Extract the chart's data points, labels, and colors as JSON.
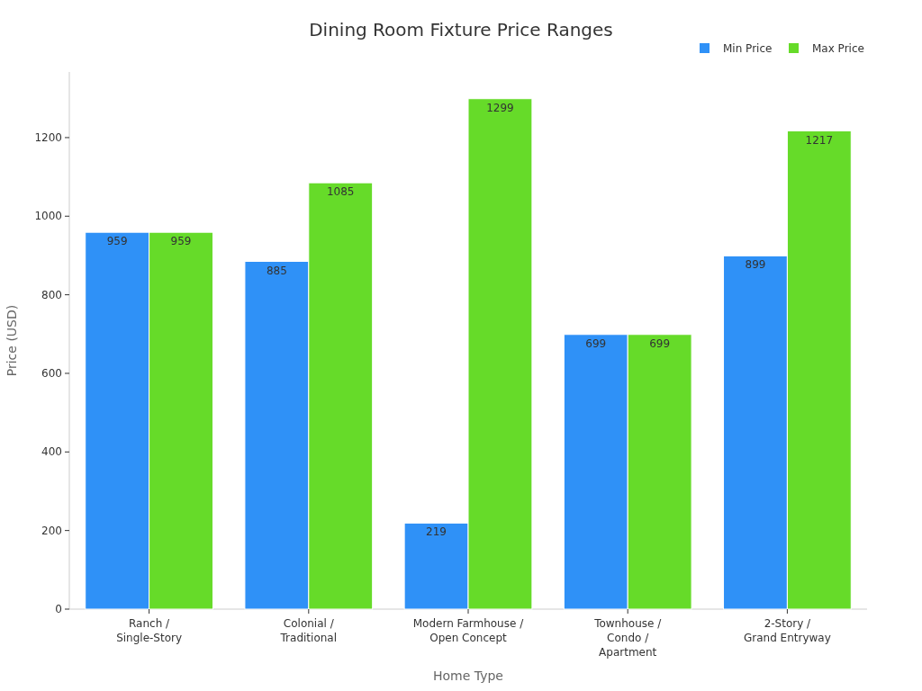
{
  "chart_data": {
    "type": "bar",
    "title": "Dining Room Fixture Price Ranges",
    "xlabel": "Home Type",
    "ylabel": "Price (USD)",
    "categories": [
      "Ranch /\nSingle-Story",
      "Colonial /\nTraditional",
      "Modern Farmhouse /\nOpen Concept",
      "Townhouse /\nCondo /\nApartment",
      "2-Story /\nGrand Entryway"
    ],
    "series": [
      {
        "name": "Min Price",
        "color": "#2f91f7",
        "values": [
          959,
          885,
          219,
          699,
          899
        ]
      },
      {
        "name": "Max Price",
        "color": "#66db29",
        "values": [
          959,
          1085,
          1299,
          699,
          1217
        ]
      }
    ],
    "ylim": [
      0,
      1367
    ],
    "yticks": [
      0,
      200,
      400,
      600,
      800,
      1000,
      1200
    ],
    "grid": false,
    "legend": "top right",
    "data_labels": true
  }
}
